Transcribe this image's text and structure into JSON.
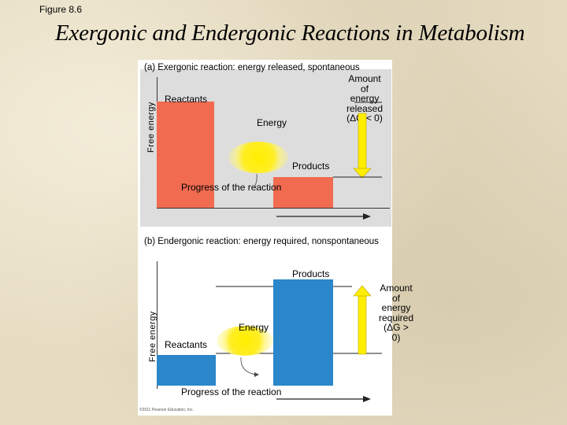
{
  "figure_label": "Figure 8.6",
  "title": "Exergonic and Endergonic Reactions in Metabolism",
  "panel_a": {
    "heading": "(a) Exergonic reaction: energy released, spontaneous",
    "y_axis": "Free energy",
    "x_axis": "Progress of the reaction",
    "reactants": "Reactants",
    "products": "Products",
    "energy": "Energy",
    "amount_lines": [
      "Amount of",
      "energy",
      "released"
    ],
    "delta": "(ΔG < 0)",
    "colors": {
      "reactants_bar": "#f06b50",
      "products_bar": "#f06b50",
      "arrow": "#ffee00"
    }
  },
  "panel_b": {
    "heading": "(b) Endergonic reaction: energy required, nonspontaneous",
    "y_axis": "Free energy",
    "x_axis": "Progress of the reaction",
    "reactants": "Reactants",
    "products": "Products",
    "energy": "Energy",
    "amount_lines": [
      "Amount of",
      "energy",
      "required"
    ],
    "delta": "(ΔG > 0)",
    "colors": {
      "reactants_bar": "#2b87c9",
      "products_bar": "#2b87c9",
      "arrow": "#ffee00"
    }
  },
  "copyright": "©2011 Pearson Education, Inc."
}
